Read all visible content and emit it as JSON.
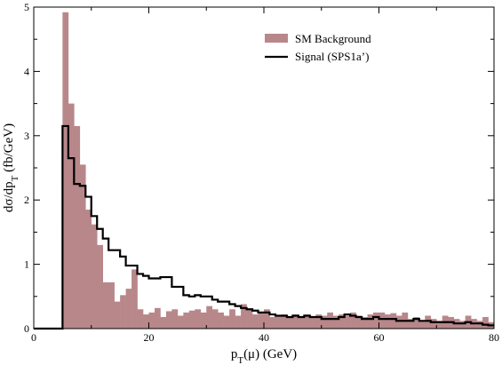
{
  "chart_data": {
    "type": "bar",
    "title": "",
    "xlabel": "p_T(μ) (GeV)",
    "ylabel": "dσ/dp_T (fb/GeV)",
    "xlim": [
      0,
      80
    ],
    "ylim": [
      0,
      5
    ],
    "bin_width": 1,
    "xticks": [
      0,
      20,
      40,
      60,
      80
    ],
    "yticks": [
      0,
      1,
      2,
      3,
      4,
      5
    ],
    "grid": false,
    "legend_position": "top-right",
    "series": [
      {
        "name": "SM Background",
        "style": "filled histogram",
        "color": "#B8878A",
        "x_start": 0,
        "values": [
          0,
          0,
          0,
          0,
          0,
          4.92,
          3.5,
          3.15,
          2.55,
          1.85,
          1.62,
          1.3,
          0.72,
          0.72,
          0.42,
          0.52,
          0.62,
          0.92,
          0.3,
          0.22,
          0.25,
          0.32,
          0.18,
          0.27,
          0.3,
          0.2,
          0.25,
          0.28,
          0.3,
          0.25,
          0.35,
          0.3,
          0.25,
          0.2,
          0.3,
          0.2,
          0.38,
          0.3,
          0.22,
          0.25,
          0.3,
          0.18,
          0.2,
          0.22,
          0.18,
          0.22,
          0.18,
          0.22,
          0.18,
          0.22,
          0.2,
          0.25,
          0.2,
          0.22,
          0.2,
          0.25,
          0.2,
          0.18,
          0.22,
          0.25,
          0.25,
          0.22,
          0.24,
          0.2,
          0.25,
          0.15,
          0.18,
          0.12,
          0.2,
          0.15,
          0.12,
          0.2,
          0.18,
          0.15,
          0.12,
          0.2,
          0.15,
          0.12,
          0.18,
          0.1
        ]
      },
      {
        "name": "Signal (SPS1a’)",
        "style": "step line",
        "color": "#000000",
        "x_start": 0,
        "values": [
          0,
          0,
          0,
          0,
          0,
          3.15,
          2.65,
          2.25,
          2.22,
          2.05,
          1.75,
          1.55,
          1.4,
          1.22,
          1.22,
          1.12,
          0.98,
          0.98,
          0.85,
          0.82,
          0.78,
          0.78,
          0.8,
          0.8,
          0.65,
          0.65,
          0.52,
          0.5,
          0.52,
          0.5,
          0.5,
          0.45,
          0.42,
          0.42,
          0.38,
          0.35,
          0.32,
          0.3,
          0.28,
          0.25,
          0.25,
          0.22,
          0.2,
          0.2,
          0.18,
          0.2,
          0.18,
          0.2,
          0.18,
          0.18,
          0.15,
          0.15,
          0.15,
          0.18,
          0.22,
          0.2,
          0.18,
          0.15,
          0.15,
          0.18,
          0.15,
          0.15,
          0.15,
          0.12,
          0.12,
          0.12,
          0.15,
          0.12,
          0.12,
          0.1,
          0.1,
          0.1,
          0.1,
          0.08,
          0.08,
          0.1,
          0.08,
          0.08,
          0.06,
          0.05
        ]
      }
    ]
  }
}
